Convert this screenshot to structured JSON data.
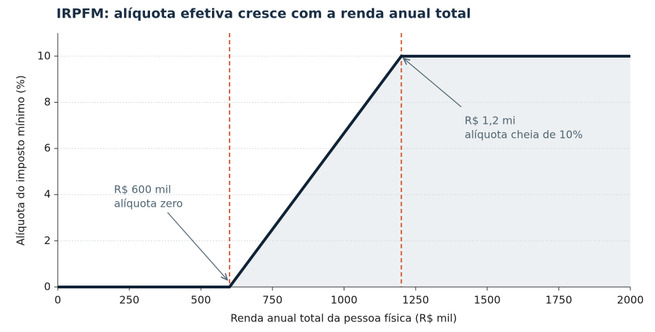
{
  "chart_data": {
    "type": "line",
    "title": "IRPFM: alíquota efetiva cresce com a renda anual total",
    "xlabel": "Renda anual total da pessoa física (R$ mil)",
    "ylabel": "Alíquota do imposto mínimo (%)",
    "x": [
      0,
      600,
      1200,
      2000
    ],
    "values": [
      0,
      0,
      10,
      10
    ],
    "color": "#0f2236",
    "area_color": "#e9ecef",
    "xlim": [
      0,
      2000
    ],
    "xticks": [
      0,
      250,
      500,
      750,
      1000,
      1250,
      1500,
      1750,
      2000
    ],
    "ylim": [
      0,
      11
    ],
    "yticks": [
      0,
      2,
      4,
      6,
      8,
      10
    ],
    "grid": true,
    "vlines": [
      600,
      1200
    ],
    "vline_color": "#d0603a",
    "annotations": [
      {
        "lines": [
          "R$ 600 mil",
          "alíquota zero"
        ],
        "x": 600,
        "y": 0
      },
      {
        "lines": [
          "R$ 1,2 mi",
          "alíquota cheia de 10%"
        ],
        "x": 1200,
        "y": 10
      }
    ]
  }
}
